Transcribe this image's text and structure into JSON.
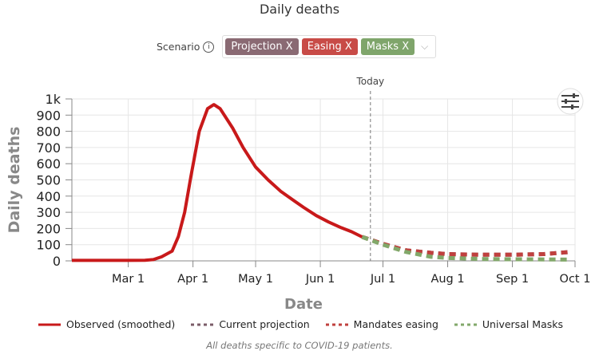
{
  "chart_data": {
    "type": "line",
    "title": "Daily deaths",
    "xlabel": "Date",
    "ylabel": "Daily deaths",
    "x_unit": "day of year 2020",
    "xlim": [
      33,
      274
    ],
    "ylim": [
      0,
      1000
    ],
    "x_ticks": [
      {
        "x": 60,
        "label": "Mar 1"
      },
      {
        "x": 91,
        "label": "Apr 1"
      },
      {
        "x": 121,
        "label": "May 1"
      },
      {
        "x": 152,
        "label": "Jun 1"
      },
      {
        "x": 182,
        "label": "Jul 1"
      },
      {
        "x": 213,
        "label": "Aug 1"
      },
      {
        "x": 244,
        "label": "Sep 1"
      },
      {
        "x": 274,
        "label": "Oct 1"
      }
    ],
    "y_ticks": [
      {
        "y": 0,
        "label": "0"
      },
      {
        "y": 100,
        "label": "100"
      },
      {
        "y": 200,
        "label": "200"
      },
      {
        "y": 300,
        "label": "300"
      },
      {
        "y": 400,
        "label": "400"
      },
      {
        "y": 500,
        "label": "500"
      },
      {
        "y": 600,
        "label": "600"
      },
      {
        "y": 700,
        "label": "700"
      },
      {
        "y": 800,
        "label": "800"
      },
      {
        "y": 900,
        "label": "900"
      },
      {
        "y": 1000,
        "label": "1k"
      }
    ],
    "today": {
      "x": 176,
      "label": "Today"
    },
    "grid": true,
    "legend_position": "bottom",
    "series": [
      {
        "name": "Observed (smoothed)",
        "color": "#c8191a",
        "style": "solid",
        "points": [
          [
            33,
            3
          ],
          [
            60,
            3
          ],
          [
            68,
            4
          ],
          [
            72,
            8
          ],
          [
            76,
            25
          ],
          [
            81,
            60
          ],
          [
            84,
            150
          ],
          [
            87,
            300
          ],
          [
            90,
            520
          ],
          [
            94,
            800
          ],
          [
            98,
            940
          ],
          [
            101,
            965
          ],
          [
            104,
            940
          ],
          [
            110,
            820
          ],
          [
            115,
            700
          ],
          [
            121,
            580
          ],
          [
            127,
            500
          ],
          [
            133,
            430
          ],
          [
            139,
            375
          ],
          [
            144,
            330
          ],
          [
            150,
            280
          ],
          [
            156,
            240
          ],
          [
            162,
            205
          ],
          [
            167,
            180
          ],
          [
            172,
            148
          ]
        ]
      },
      {
        "name": "Current projection",
        "color": "#7b5c68",
        "style": "dashed",
        "points": [
          [
            172,
            148
          ],
          [
            182,
            105
          ],
          [
            193,
            65
          ],
          [
            205,
            50
          ],
          [
            213,
            42
          ],
          [
            228,
            38
          ],
          [
            244,
            38
          ],
          [
            259,
            42
          ],
          [
            272,
            55
          ]
        ]
      },
      {
        "name": "Mandates easing",
        "color": "#c0403e",
        "style": "dashed",
        "points": [
          [
            172,
            148
          ],
          [
            182,
            105
          ],
          [
            193,
            65
          ],
          [
            205,
            50
          ],
          [
            213,
            42
          ],
          [
            228,
            38
          ],
          [
            244,
            38
          ],
          [
            259,
            42
          ],
          [
            272,
            55
          ]
        ]
      },
      {
        "name": "Universal Masks",
        "color": "#82a86a",
        "style": "dashed",
        "points": [
          [
            172,
            148
          ],
          [
            182,
            100
          ],
          [
            193,
            55
          ],
          [
            205,
            25
          ],
          [
            213,
            18
          ],
          [
            228,
            12
          ],
          [
            244,
            10
          ],
          [
            259,
            9
          ],
          [
            272,
            8
          ]
        ]
      }
    ]
  },
  "scenario": {
    "label": "Scenario",
    "info_icon": "i",
    "chips": [
      {
        "label": "Projection",
        "color": "#8a6a73"
      },
      {
        "label": "Easing",
        "color": "#c84b47"
      },
      {
        "label": "Masks",
        "color": "#7fa56b"
      }
    ],
    "close_icon": "X",
    "chevron": "⌵"
  },
  "footnote": "All deaths specific to COVID-19 patients."
}
